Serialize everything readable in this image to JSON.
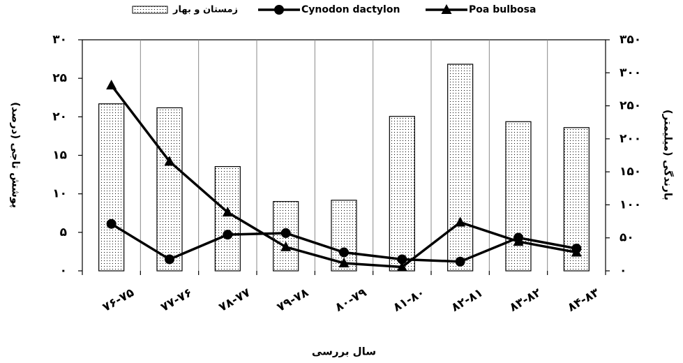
{
  "chart_data": {
    "type": "bar_line",
    "categories": [
      "۷۶-۷۵",
      "۷۷-۷۶",
      "۷۸-۷۷",
      "۷۹-۷۸",
      "۸۰-۷۹",
      "۸۱-۸۰",
      "۸۲-۸۱",
      "۸۳-۸۲",
      "۸۴-۸۳"
    ],
    "series": [
      {
        "name": "زمستان و بهار",
        "type": "bar",
        "axis": "y2",
        "color": "#000000",
        "values": [
          253,
          247,
          158,
          105,
          107,
          234,
          313,
          226,
          217
        ]
      },
      {
        "name": "Cynodon dactylon",
        "type": "line",
        "marker": "circle",
        "color": "#000000",
        "values": [
          6.1,
          1.5,
          4.7,
          4.9,
          2.4,
          1.5,
          1.2,
          4.3,
          2.9
        ]
      },
      {
        "name": "Poa bulbosa",
        "type": "line",
        "marker": "triangle",
        "color": "#000000",
        "values": [
          24.1,
          14.2,
          7.6,
          3.1,
          1.0,
          0.5,
          6.3,
          3.8,
          2.4
        ]
      }
    ],
    "ylabel": "پوشش تاجی (درصد)",
    "y2label": "بارندگی (میلیمتر)",
    "xlabel": "سال بررسی",
    "ylim": [
      0,
      30
    ],
    "yticks": [
      {
        "value": 0,
        "label": "۰"
      },
      {
        "value": 5,
        "label": "۵"
      },
      {
        "value": 10,
        "label": "۱۰"
      },
      {
        "value": 15,
        "label": "۱۵"
      },
      {
        "value": 20,
        "label": "۲۰"
      },
      {
        "value": 25,
        "label": "۲۵"
      },
      {
        "value": 30,
        "label": "۳۰"
      }
    ],
    "y2lim": [
      0,
      350
    ],
    "y2ticks": [
      {
        "value": 0,
        "label": "۰"
      },
      {
        "value": 50,
        "label": "۵۰"
      },
      {
        "value": 100,
        "label": "۱۰۰"
      },
      {
        "value": 150,
        "label": "۱۵۰"
      },
      {
        "value": 200,
        "label": "۲۰۰"
      },
      {
        "value": 250,
        "label": "۲۵۰"
      },
      {
        "value": 300,
        "label": "۳۰۰"
      },
      {
        "value": 350,
        "label": "۳۵۰"
      }
    ],
    "legend": "top"
  }
}
